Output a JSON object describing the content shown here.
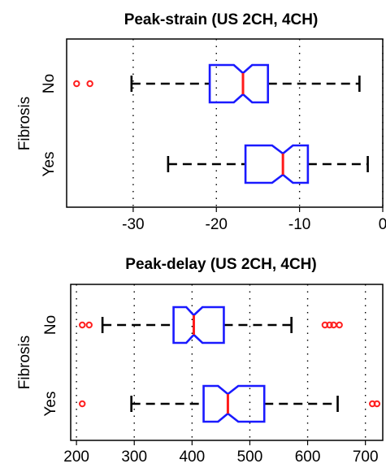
{
  "chart_data": [
    {
      "type": "boxplot",
      "orientation": "horizontal",
      "notched": true,
      "title": "Peak-strain (US 2CH, 4CH)",
      "xlabel": "",
      "ylabel": "Fibrosis",
      "xlim": [
        -38,
        0
      ],
      "xticks": [
        -30,
        -20,
        -10,
        0
      ],
      "grid": "vertical dotted",
      "categories": [
        "No",
        "Yes"
      ],
      "series": [
        {
          "values": {
            "whisker_low": -30.2,
            "q1": -20.8,
            "median": -16.8,
            "q3": -13.8,
            "whisker_high": -2.8,
            "notch_low": -17.9,
            "notch_high": -15.7,
            "outliers": [
              -36.8,
              -35.2
            ]
          }
        },
        {
          "values": {
            "whisker_low": -25.8,
            "q1": -16.5,
            "median": -12.0,
            "q3": -9.0,
            "whisker_high": -1.8,
            "notch_low": -13.3,
            "notch_high": -10.8,
            "outliers": []
          }
        }
      ],
      "colors": {
        "box": "#1a1aff",
        "median": "#ff1a1a",
        "whisker": "#000000",
        "outlier": "#ff2020"
      }
    },
    {
      "type": "boxplot",
      "orientation": "horizontal",
      "notched": true,
      "title": "Peak-delay (US 2CH, 4CH)",
      "xlabel": "",
      "ylabel": "Fibrosis",
      "xlim": [
        190,
        730
      ],
      "xticks": [
        200,
        300,
        400,
        500,
        600,
        700
      ],
      "grid": "vertical dotted",
      "categories": [
        "No",
        "Yes"
      ],
      "series": [
        {
          "values": {
            "whisker_low": 245,
            "q1": 368,
            "median": 403,
            "q3": 455,
            "whisker_high": 572,
            "notch_low": 390,
            "notch_high": 418,
            "outliers": [
              210,
              222,
              630,
              638,
              645,
              655
            ]
          }
        },
        {
          "values": {
            "whisker_low": 295,
            "q1": 420,
            "median": 462,
            "q3": 525,
            "whisker_high": 652,
            "notch_low": 445,
            "notch_high": 480,
            "outliers": [
              210,
              712,
              720
            ]
          }
        }
      ],
      "colors": {
        "box": "#1a1aff",
        "median": "#ff1a1a",
        "whisker": "#000000",
        "outlier": "#ff2020"
      }
    }
  ]
}
